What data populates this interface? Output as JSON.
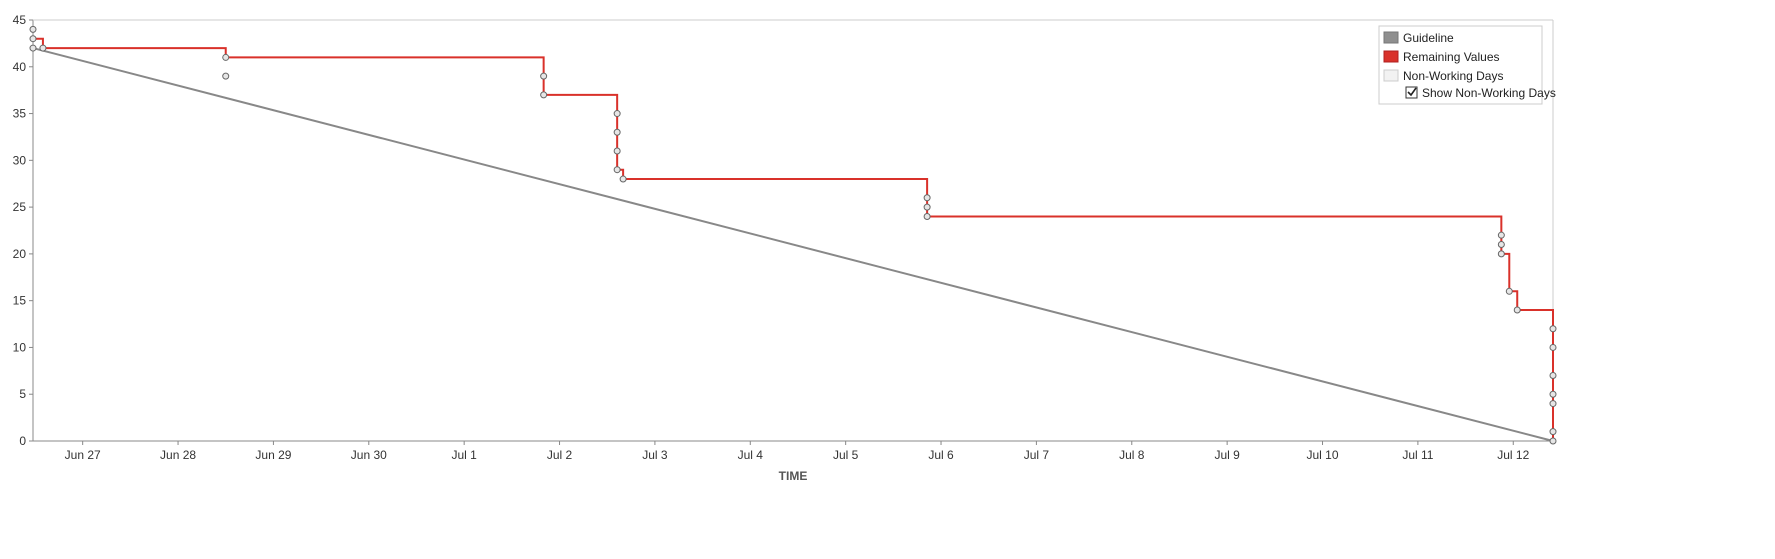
{
  "chart_data": {
    "type": "line",
    "title": "",
    "xlabel": "TIME",
    "ylabel": "",
    "ylim": [
      0,
      45
    ],
    "xlim": [
      "2017-06-26T11:30",
      "2017-07-12T10:00"
    ],
    "yticks": [
      0,
      5,
      10,
      15,
      20,
      25,
      30,
      35,
      40,
      45
    ],
    "xticks": [
      {
        "label": "Jun 27",
        "date": "2017-06-27"
      },
      {
        "label": "Jun 28",
        "date": "2017-06-28"
      },
      {
        "label": "Jun 29",
        "date": "2017-06-29"
      },
      {
        "label": "Jun 30",
        "date": "2017-06-30"
      },
      {
        "label": "Jul 1",
        "date": "2017-07-01"
      },
      {
        "label": "Jul 2",
        "date": "2017-07-02"
      },
      {
        "label": "Jul 3",
        "date": "2017-07-03"
      },
      {
        "label": "Jul 4",
        "date": "2017-07-04"
      },
      {
        "label": "Jul 5",
        "date": "2017-07-05"
      },
      {
        "label": "Jul 6",
        "date": "2017-07-06"
      },
      {
        "label": "Jul 7",
        "date": "2017-07-07"
      },
      {
        "label": "Jul 8",
        "date": "2017-07-08"
      },
      {
        "label": "Jul 9",
        "date": "2017-07-09"
      },
      {
        "label": "Jul 10",
        "date": "2017-07-10"
      },
      {
        "label": "Jul 11",
        "date": "2017-07-11"
      },
      {
        "label": "Jul 12",
        "date": "2017-07-12"
      }
    ],
    "grid": false,
    "legend_position": "top-right",
    "series": [
      {
        "name": "Guideline",
        "color": "#888888",
        "style": "line",
        "points": [
          {
            "x": "2017-06-26T11:30",
            "y": 42
          },
          {
            "x": "2017-07-12T10:00",
            "y": 0
          }
        ]
      },
      {
        "name": "Remaining Values",
        "color": "#d9312a",
        "style": "step",
        "points": [
          {
            "x": "2017-06-26T11:30",
            "y": 44
          },
          {
            "x": "2017-06-26T11:30",
            "y": 43
          },
          {
            "x": "2017-06-26T11:30",
            "y": 42
          },
          {
            "x": "2017-06-26T14:00",
            "y": 42
          },
          {
            "x": "2017-06-28T12:00",
            "y": 41
          },
          {
            "x": "2017-06-28T12:00",
            "y": 39
          },
          {
            "x": "2017-07-01T20:00",
            "y": 39
          },
          {
            "x": "2017-07-01T20:00",
            "y": 37
          },
          {
            "x": "2017-07-02T14:30",
            "y": 35
          },
          {
            "x": "2017-07-02T14:30",
            "y": 33
          },
          {
            "x": "2017-07-02T14:30",
            "y": 31
          },
          {
            "x": "2017-07-02T14:30",
            "y": 29
          },
          {
            "x": "2017-07-02T16:00",
            "y": 28
          },
          {
            "x": "2017-07-05T20:30",
            "y": 26
          },
          {
            "x": "2017-07-05T20:30",
            "y": 25
          },
          {
            "x": "2017-07-05T20:30",
            "y": 24
          },
          {
            "x": "2017-07-11T21:00",
            "y": 22
          },
          {
            "x": "2017-07-11T21:00",
            "y": 21
          },
          {
            "x": "2017-07-11T21:00",
            "y": 20
          },
          {
            "x": "2017-07-11T23:00",
            "y": 16
          },
          {
            "x": "2017-07-12T01:00",
            "y": 14
          },
          {
            "x": "2017-07-12T10:00",
            "y": 12
          },
          {
            "x": "2017-07-12T10:00",
            "y": 10
          },
          {
            "x": "2017-07-12T10:00",
            "y": 7
          },
          {
            "x": "2017-07-12T10:00",
            "y": 5
          },
          {
            "x": "2017-07-12T10:00",
            "y": 4
          },
          {
            "x": "2017-07-12T10:00",
            "y": 1
          },
          {
            "x": "2017-07-12T10:00",
            "y": 0
          }
        ],
        "steps": [
          {
            "x": "2017-06-26T11:30",
            "y": 43
          },
          {
            "x": "2017-06-26T14:00",
            "y": 42
          },
          {
            "x": "2017-06-28T12:00",
            "y": 41
          },
          {
            "x": "2017-07-01T20:00",
            "y": 37
          },
          {
            "x": "2017-07-02T14:30",
            "y": 29
          },
          {
            "x": "2017-07-02T16:00",
            "y": 28
          },
          {
            "x": "2017-07-05T20:30",
            "y": 24
          },
          {
            "x": "2017-07-11T21:00",
            "y": 20
          },
          {
            "x": "2017-07-11T23:00",
            "y": 16
          },
          {
            "x": "2017-07-12T01:00",
            "y": 14
          },
          {
            "x": "2017-07-12T10:00",
            "y": 0
          }
        ]
      }
    ],
    "legend": {
      "items": [
        {
          "label": "Guideline",
          "color": "#8f8f8f"
        },
        {
          "label": "Remaining Values",
          "color": "#d9312a"
        },
        {
          "label": "Non-Working Days",
          "color": "#f2f2f2"
        }
      ],
      "checkbox": {
        "label": "Show Non-Working Days",
        "checked": true
      }
    }
  }
}
